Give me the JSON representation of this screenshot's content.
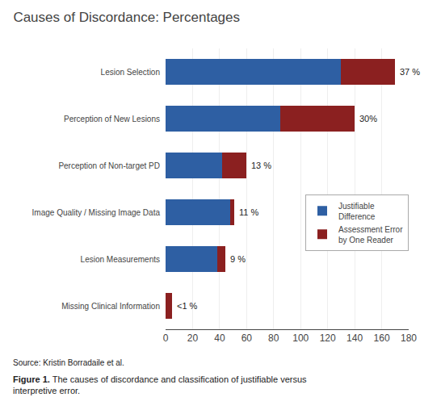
{
  "chart_data": {
    "type": "bar",
    "orientation": "horizontal",
    "stacked": true,
    "title": "Causes of Discordance: Percentages",
    "categories": [
      "Missing Clinical Information",
      "Lesion Measurements",
      "Image Quality / Missing Image Data",
      "Perception of Non-target PD",
      "Perception of New Lesions",
      "Lesion Selection"
    ],
    "series": [
      {
        "name": "Justifiable\nDifference",
        "color": "#2e5fa3",
        "values": [
          0,
          38,
          48,
          42,
          85,
          130
        ]
      },
      {
        "name": "Assessment Error\nby One Reader",
        "color": "#8b2020",
        "values": [
          5,
          6,
          3,
          18,
          55,
          40
        ]
      }
    ],
    "annotations": [
      {
        "category": "Missing Clinical Information",
        "text": "<1 %"
      },
      {
        "category": "Lesion Measurements",
        "text": "9 %"
      },
      {
        "category": "Image Quality / Missing Image Data",
        "text": "11 %"
      },
      {
        "category": "Perception of Non-target PD",
        "text": "13 %"
      },
      {
        "category": "Perception of New Lesions",
        "text": "30%"
      },
      {
        "category": "Lesion Selection",
        "text": "37 %"
      },
      {
        "text": "Source: Kristin Borradaile et al."
      },
      {
        "text": "Figure 1.",
        "bold": true
      },
      {
        "text": "The causes of discordance and classification of justifiable versus interpretive error."
      }
    ],
    "xlim": [
      0,
      180
    ],
    "xticks": [
      0,
      20,
      40,
      60,
      80,
      100,
      120,
      140,
      160,
      180
    ],
    "grid": true,
    "legend": "right"
  }
}
